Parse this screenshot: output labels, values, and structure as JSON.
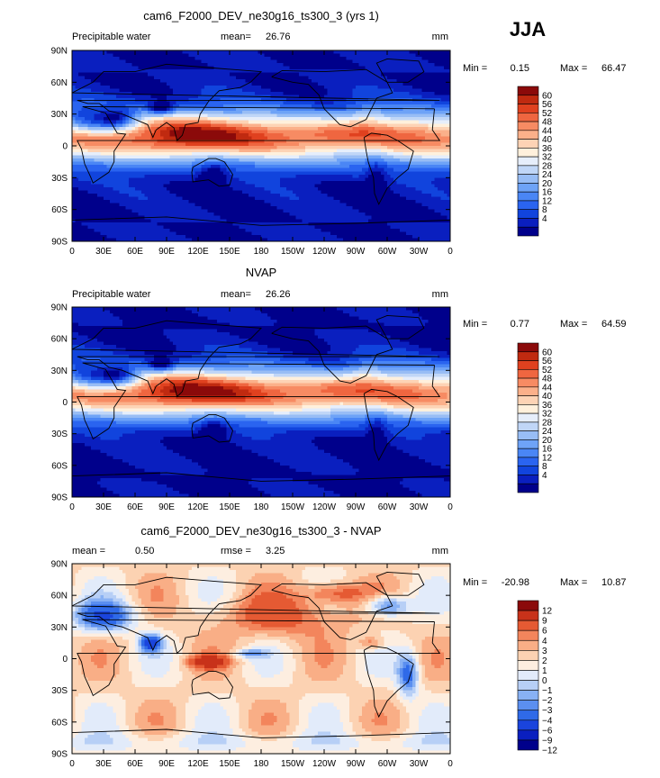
{
  "season": "JJA",
  "colors": {
    "abs_levels": [
      "#00008B",
      "#0a1fbf",
      "#1144dd",
      "#2a64f0",
      "#4a86f5",
      "#6ea3f7",
      "#98bdf5",
      "#c0d6f7",
      "#e6eefb",
      "#fff0dc",
      "#fdd3b5",
      "#fbb08a",
      "#f78b63",
      "#ef6640",
      "#e0411f",
      "#c02a10",
      "#8b0a0a"
    ],
    "diff_levels": [
      "#00008B",
      "#0a1fbf",
      "#1a44dd",
      "#2f6ae8",
      "#5b8ff0",
      "#88b1f4",
      "#b7cff6",
      "#e2ebfa",
      "#fdeee0",
      "#fcd2b2",
      "#f9ae86",
      "#f3855c",
      "#e55a33",
      "#c8321a",
      "#8b0a0a"
    ],
    "land": "#000000"
  },
  "chart_data": [
    {
      "type": "heatmap",
      "id": "model",
      "title": "cam6_F2000_DEV_ne30g16_ts300_3 (yrs 1)",
      "left_label": "Precipitable water",
      "stat_labels": [
        "mean=",
        "26.76"
      ],
      "units": "mm",
      "minmax_labels": [
        "Min =",
        "0.15",
        "Max =",
        "66.47"
      ],
      "min": 0.15,
      "max": 66.47,
      "mean": 26.76,
      "field": "abs",
      "bias": 0,
      "x_ticks": [
        "0",
        "30E",
        "60E",
        "90E",
        "120E",
        "150E",
        "180",
        "150W",
        "120W",
        "90W",
        "60W",
        "30W",
        "0"
      ],
      "y_ticks": [
        "90N",
        "60N",
        "30N",
        "0",
        "30S",
        "60S",
        "90S"
      ],
      "colorbar": {
        "levels": [
          "60",
          "56",
          "52",
          "48",
          "44",
          "40",
          "36",
          "32",
          "28",
          "24",
          "20",
          "16",
          "12",
          "8",
          "4"
        ],
        "xlim": [
          0,
          360
        ],
        "ylim": [
          -90,
          90
        ]
      }
    },
    {
      "type": "heatmap",
      "id": "obs",
      "title": "NVAP",
      "left_label": "Precipitable water",
      "stat_labels": [
        "mean=",
        "26.26"
      ],
      "units": "mm",
      "minmax_labels": [
        "Min =",
        "0.77",
        "Max =",
        "64.59"
      ],
      "min": 0.77,
      "max": 64.59,
      "mean": 26.26,
      "field": "abs",
      "bias": -0.5,
      "x_ticks": [
        "0",
        "30E",
        "60E",
        "90E",
        "120E",
        "150E",
        "180",
        "150W",
        "120W",
        "90W",
        "60W",
        "30W",
        "0"
      ],
      "y_ticks": [
        "90N",
        "60N",
        "30N",
        "0",
        "30S",
        "60S",
        "90S"
      ],
      "colorbar": {
        "levels": [
          "60",
          "56",
          "52",
          "48",
          "44",
          "40",
          "36",
          "32",
          "28",
          "24",
          "20",
          "16",
          "12",
          "8",
          "4"
        ],
        "xlim": [
          0,
          360
        ],
        "ylim": [
          -90,
          90
        ]
      }
    },
    {
      "type": "heatmap",
      "id": "diff",
      "title": "cam6_F2000_DEV_ne30g16_ts300_3 - NVAP",
      "left_label": "mean =",
      "left_value": "0.50",
      "stat_labels": [
        "rmse =",
        "3.25"
      ],
      "units": "mm",
      "minmax_labels": [
        "Min =",
        "-20.98",
        "Max =",
        "10.87"
      ],
      "min": -20.98,
      "max": 10.87,
      "mean": 0.5,
      "rmse": 3.25,
      "field": "diff",
      "bias": 0,
      "x_ticks": [
        "0",
        "30E",
        "60E",
        "90E",
        "120E",
        "150E",
        "180",
        "150W",
        "120W",
        "90W",
        "60W",
        "30W",
        "0"
      ],
      "y_ticks": [
        "90N",
        "60N",
        "30N",
        "0",
        "30S",
        "60S",
        "90S"
      ],
      "colorbar": {
        "levels": [
          "12",
          "9",
          "6",
          "4",
          "3",
          "2",
          "1",
          "0",
          "−1",
          "−2",
          "−3",
          "−4",
          "−6",
          "−9",
          "−12"
        ],
        "xlim": [
          0,
          360
        ],
        "ylim": [
          -90,
          90
        ]
      }
    }
  ]
}
